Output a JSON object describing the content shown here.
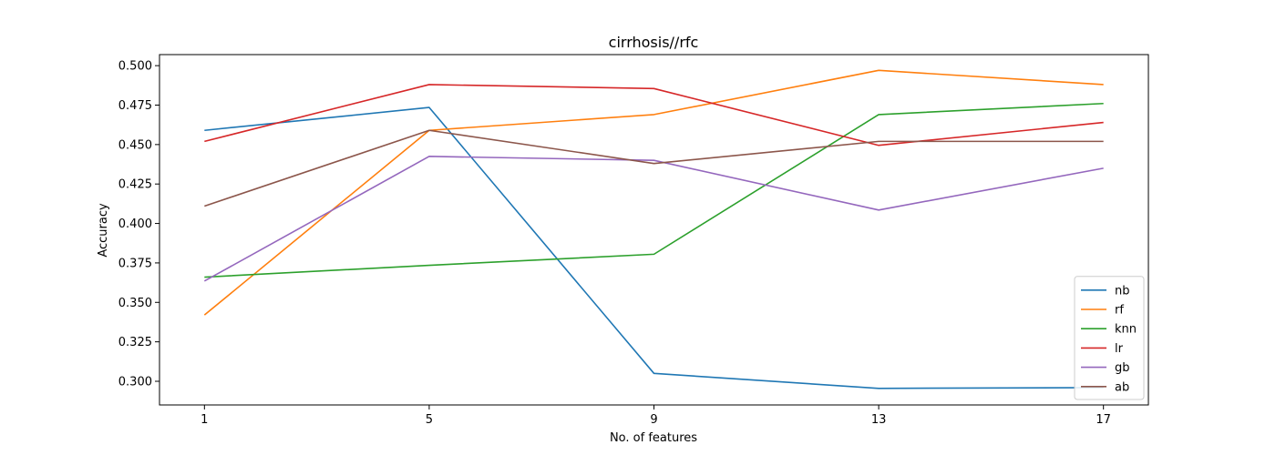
{
  "chart_data": {
    "type": "line",
    "title": "cirrhosis//rfc",
    "xlabel": "No. of features",
    "ylabel": "Accuracy",
    "x": [
      1,
      5,
      9,
      13,
      17
    ],
    "xticks": [
      "1",
      "5",
      "9",
      "13",
      "17"
    ],
    "xlim": [
      0.2,
      17.8
    ],
    "ylim": [
      0.285,
      0.507
    ],
    "yticks": [
      "0.300",
      "0.325",
      "0.350",
      "0.375",
      "0.400",
      "0.425",
      "0.450",
      "0.475",
      "0.500"
    ],
    "grid": false,
    "legend_position": "lower-right",
    "series": [
      {
        "name": "nb",
        "color": "#1f77b4",
        "values": [
          0.459,
          0.4735,
          0.305,
          0.2955,
          0.296
        ]
      },
      {
        "name": "rf",
        "color": "#ff7f0e",
        "values": [
          0.342,
          0.459,
          0.469,
          0.497,
          0.488
        ]
      },
      {
        "name": "knn",
        "color": "#2ca02c",
        "values": [
          0.366,
          0.3735,
          0.3805,
          0.469,
          0.476
        ]
      },
      {
        "name": "lr",
        "color": "#d62728",
        "values": [
          0.452,
          0.488,
          0.4855,
          0.4495,
          0.464
        ]
      },
      {
        "name": "gb",
        "color": "#9467bd",
        "values": [
          0.3635,
          0.4425,
          0.44,
          0.4085,
          0.435
        ]
      },
      {
        "name": "ab",
        "color": "#8c564b",
        "values": [
          0.411,
          0.459,
          0.438,
          0.452,
          0.452
        ]
      }
    ]
  }
}
